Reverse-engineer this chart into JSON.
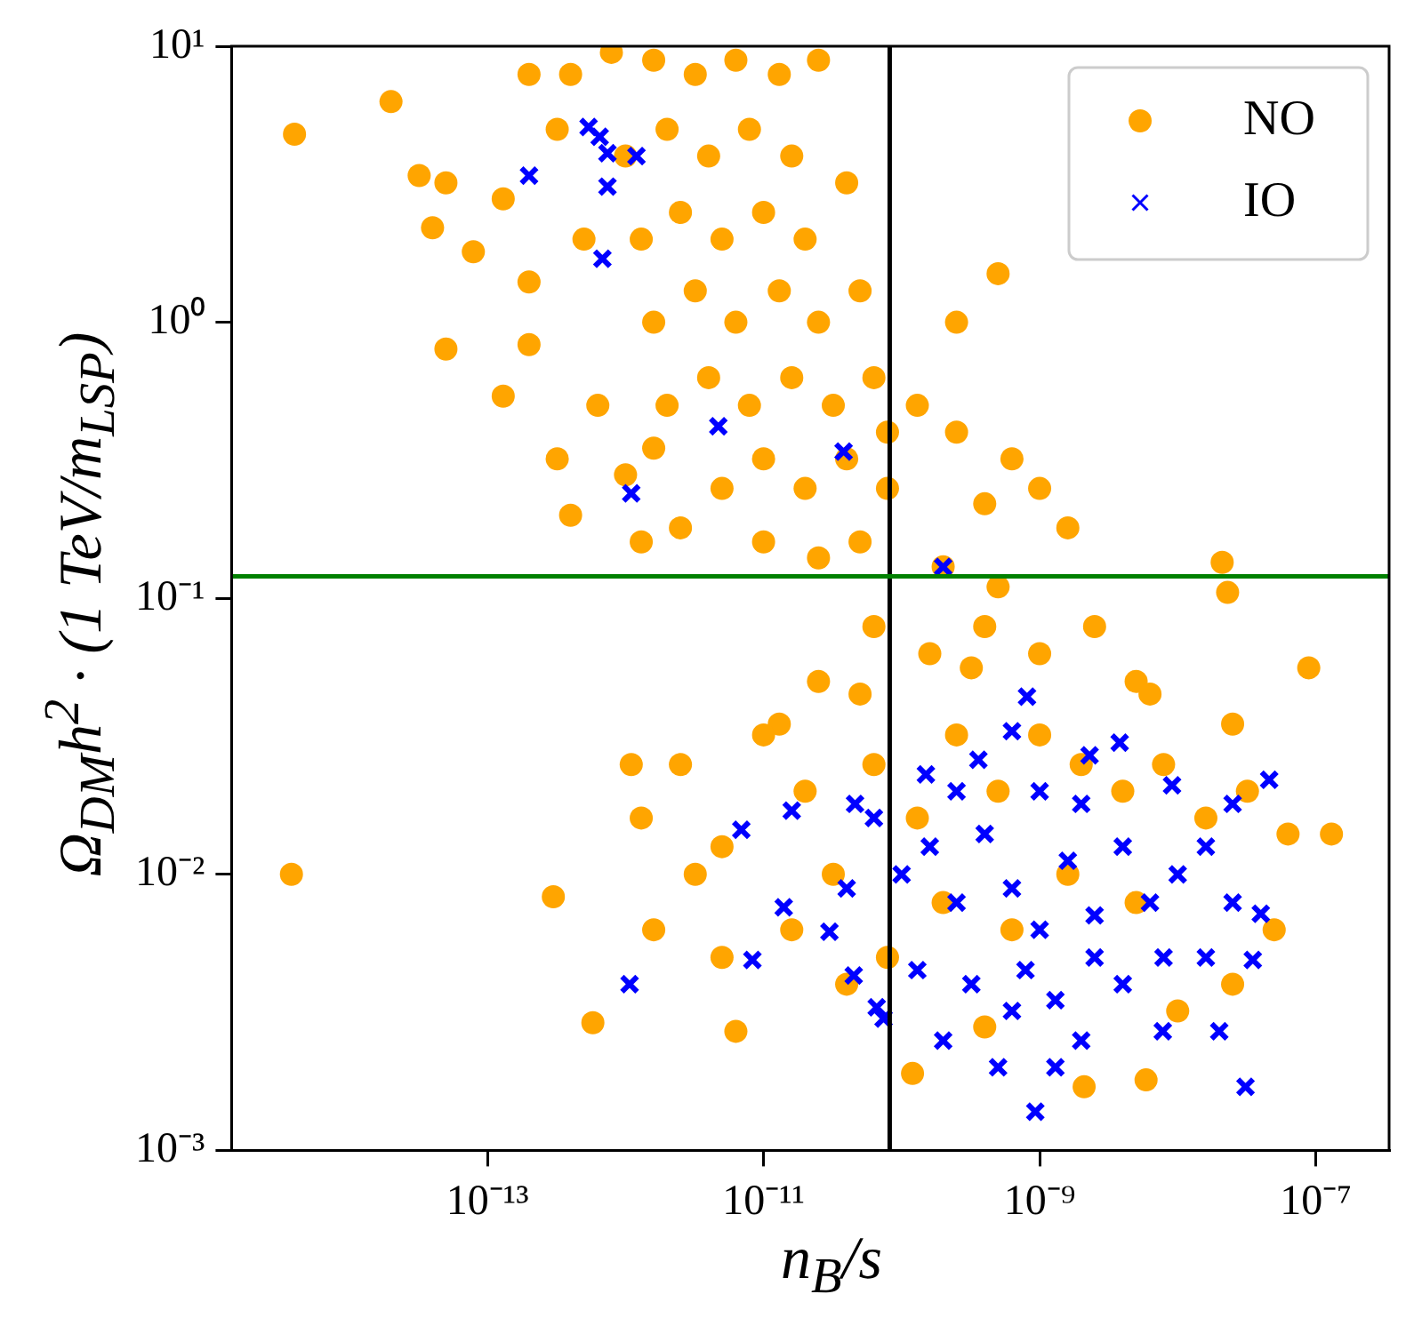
{
  "chart_data": {
    "type": "scatter",
    "xlabel": "n$_{B}$/s",
    "ylabel": "Ω$_{DM}$h$^{2}$ · (1 TeV/m$_{LSP}$)",
    "log": "xy",
    "grid": false,
    "legend": "top right",
    "xlim": [
      1.4e-15,
      3.4e-07
    ],
    "ylim": [
      0.001,
      10
    ],
    "xticks": [
      {
        "value": 1e-13,
        "label": "10⁻¹³"
      },
      {
        "value": 1e-11,
        "label": "10⁻¹¹"
      },
      {
        "value": 1e-09,
        "label": "10⁻⁹"
      },
      {
        "value": 1e-07,
        "label": "10⁻⁷"
      }
    ],
    "yticks": [
      {
        "value": 0.001,
        "label": "10⁻³"
      },
      {
        "value": 0.01,
        "label": "10⁻²"
      },
      {
        "value": 0.1,
        "label": "10⁻¹"
      },
      {
        "value": 1,
        "label": "10⁰"
      },
      {
        "value": 10,
        "label": "10¹"
      }
    ],
    "ref_lines": [
      {
        "axis": "x",
        "value": 8.2e-11,
        "color": "#000000"
      },
      {
        "axis": "y",
        "value": 0.12,
        "color": "#008000"
      }
    ],
    "series": [
      {
        "name": "NO",
        "color": "#ffa500",
        "marker": "circle",
        "x": [
          4e-15,
          2e-14,
          3.2e-14,
          5e-14,
          4e-14,
          7.9e-14,
          5e-14,
          1.3e-13,
          2e-13,
          2e-13,
          1.3e-13,
          3.2e-13,
          4e-13,
          2e-13,
          3.2e-13,
          5e-13,
          6.3e-13,
          1e-12,
          1.3e-12,
          2.5e-12,
          1.6e-12,
          4e-13,
          7.9e-13,
          1.6e-12,
          3.2e-12,
          6.3e-12,
          1.3e-11,
          2.5e-11,
          1e-12,
          2e-12,
          4e-12,
          7.9e-12,
          1.6e-11,
          1.3e-12,
          2.5e-12,
          5e-12,
          1e-11,
          2e-11,
          4e-11,
          1.6e-12,
          3.2e-12,
          6.3e-12,
          1.3e-11,
          2.5e-11,
          5e-11,
          2e-12,
          4e-12,
          7.9e-12,
          1.6e-11,
          3.2e-11,
          6.3e-11,
          5e-12,
          1e-11,
          2e-11,
          4e-11,
          7.9e-11,
          1e-11,
          2.5e-11,
          5e-11,
          7.9e-11,
          1.3e-10,
          2.5e-10,
          6.3e-10,
          4e-10,
          1e-09,
          1.6e-09,
          2.5e-10,
          5e-10,
          2.1e-08,
          2e-10,
          5e-10,
          6.3e-11,
          1.6e-10,
          4e-10,
          1e-09,
          2.5e-09,
          5e-09,
          2.5e-11,
          1.3e-11,
          8.9e-08,
          2.3e-08,
          2.5e-12,
          1.3e-12,
          3.2e-12,
          1.6e-12,
          5e-12,
          3e-13,
          5.8e-13,
          6.3e-12,
          1e-11,
          2e-11,
          3.2e-11,
          1.6e-11,
          4e-11,
          6.3e-11,
          1.3e-10,
          2.5e-10,
          5e-10,
          1e-09,
          2e-09,
          4e-09,
          7.9e-09,
          1.6e-08,
          3.2e-08,
          6.3e-08,
          1.3e-07,
          5e-08,
          2.5e-08,
          1e-08,
          5.9e-09,
          2.1e-09,
          4e-10,
          1.2e-10,
          6.3e-10,
          1.6e-09,
          5e-09,
          2e-10,
          7.9e-11,
          5e-12,
          2.5e-08,
          6.3e-09,
          1.1e-12,
          3.2e-10,
          5e-11,
          3.8e-15
        ],
        "values": [
          4.8,
          6.3,
          3.4,
          3.2,
          2.2,
          1.8,
          0.8,
          0.54,
          0.83,
          1.4,
          2.8,
          0.32,
          0.2,
          7.9,
          5,
          2,
          0.5,
          0.28,
          0.16,
          0.18,
          0.35,
          7.9,
          9.5,
          8.9,
          7.9,
          8.9,
          7.9,
          8.9,
          4,
          5,
          4,
          5,
          4,
          2,
          2.5,
          2,
          2.5,
          2,
          3.2,
          1,
          1.3,
          1,
          1.3,
          1,
          1.3,
          0.5,
          0.63,
          0.5,
          0.63,
          0.5,
          0.63,
          0.25,
          0.32,
          0.25,
          0.32,
          0.25,
          0.16,
          0.14,
          0.16,
          0.4,
          0.5,
          0.4,
          0.32,
          0.22,
          0.25,
          0.18,
          1,
          1.5,
          0.135,
          0.13,
          0.11,
          0.079,
          0.063,
          0.079,
          0.063,
          0.079,
          0.05,
          0.05,
          0.035,
          0.056,
          0.105,
          0.025,
          0.016,
          0.01,
          0.0063,
          0.005,
          0.0083,
          0.0029,
          0.0027,
          0.032,
          0.02,
          0.01,
          0.0063,
          0.004,
          0.025,
          0.016,
          0.032,
          0.02,
          0.032,
          0.025,
          0.02,
          0.025,
          0.016,
          0.02,
          0.014,
          0.014,
          0.0063,
          0.004,
          0.0032,
          0.0018,
          0.0017,
          0.0028,
          0.0019,
          0.0063,
          0.01,
          0.0079,
          0.0079,
          0.005,
          0.0126,
          0.035,
          0.045,
          0.025,
          0.056,
          0.045,
          0.01
        ]
      },
      {
        "name": "IO",
        "color": "#0000ff",
        "marker": "cross",
        "x": [
          5.4e-13,
          6.5e-13,
          7.4e-13,
          1.2e-12,
          2e-13,
          7.4e-13,
          6.8e-13,
          4.7e-12,
          1.1e-12,
          3.8e-11,
          2e-10,
          1.07e-12,
          8.3e-12,
          6.9e-12,
          1.4e-11,
          9.3e-10,
          3.1e-08,
          4.6e-08,
          8.1e-10,
          6.3e-10,
          3.8e-09,
          9.1e-09,
          2.3e-09,
          1.6e-11,
          4.6e-11,
          1.5e-10,
          3.6e-10,
          2e-08,
          7.8e-09,
          3.5e-08,
          4e-08,
          7.4e-11,
          6.6e-11,
          4.5e-11,
          3e-11,
          6.3e-11,
          1e-10,
          1.6e-10,
          2.5e-10,
          4e-10,
          6.3e-10,
          1e-09,
          1.6e-09,
          2.5e-09,
          4e-09,
          6.3e-09,
          1e-08,
          1.6e-08,
          2.5e-08,
          1.3e-10,
          3.2e-10,
          6.3e-10,
          1.3e-09,
          2e-09,
          1.3e-09,
          4e-09,
          7.9e-09,
          1.6e-08,
          5e-10,
          2e-10,
          1e-09,
          2e-09,
          2.5e-10,
          2.5e-08,
          7.9e-10,
          2.5e-09,
          4e-11
        ],
        "values": [
          5.1,
          4.7,
          4.1,
          4,
          3.4,
          3.1,
          1.7,
          0.42,
          0.24,
          0.34,
          0.13,
          0.004,
          0.0049,
          0.0145,
          0.0076,
          0.00138,
          0.0017,
          0.022,
          0.044,
          0.033,
          0.03,
          0.021,
          0.027,
          0.017,
          0.018,
          0.023,
          0.026,
          0.0027,
          0.0027,
          0.0049,
          0.0072,
          0.003,
          0.0033,
          0.0043,
          0.0062,
          0.016,
          0.01,
          0.0126,
          0.0079,
          0.014,
          0.0089,
          0.0063,
          0.0112,
          0.0071,
          0.0126,
          0.0079,
          0.01,
          0.0126,
          0.0079,
          0.0045,
          0.004,
          0.0032,
          0.0035,
          0.0025,
          0.002,
          0.004,
          0.005,
          0.005,
          0.002,
          0.0025,
          0.02,
          0.018,
          0.02,
          0.018,
          0.0045,
          0.005,
          0.0089
        ]
      }
    ]
  }
}
